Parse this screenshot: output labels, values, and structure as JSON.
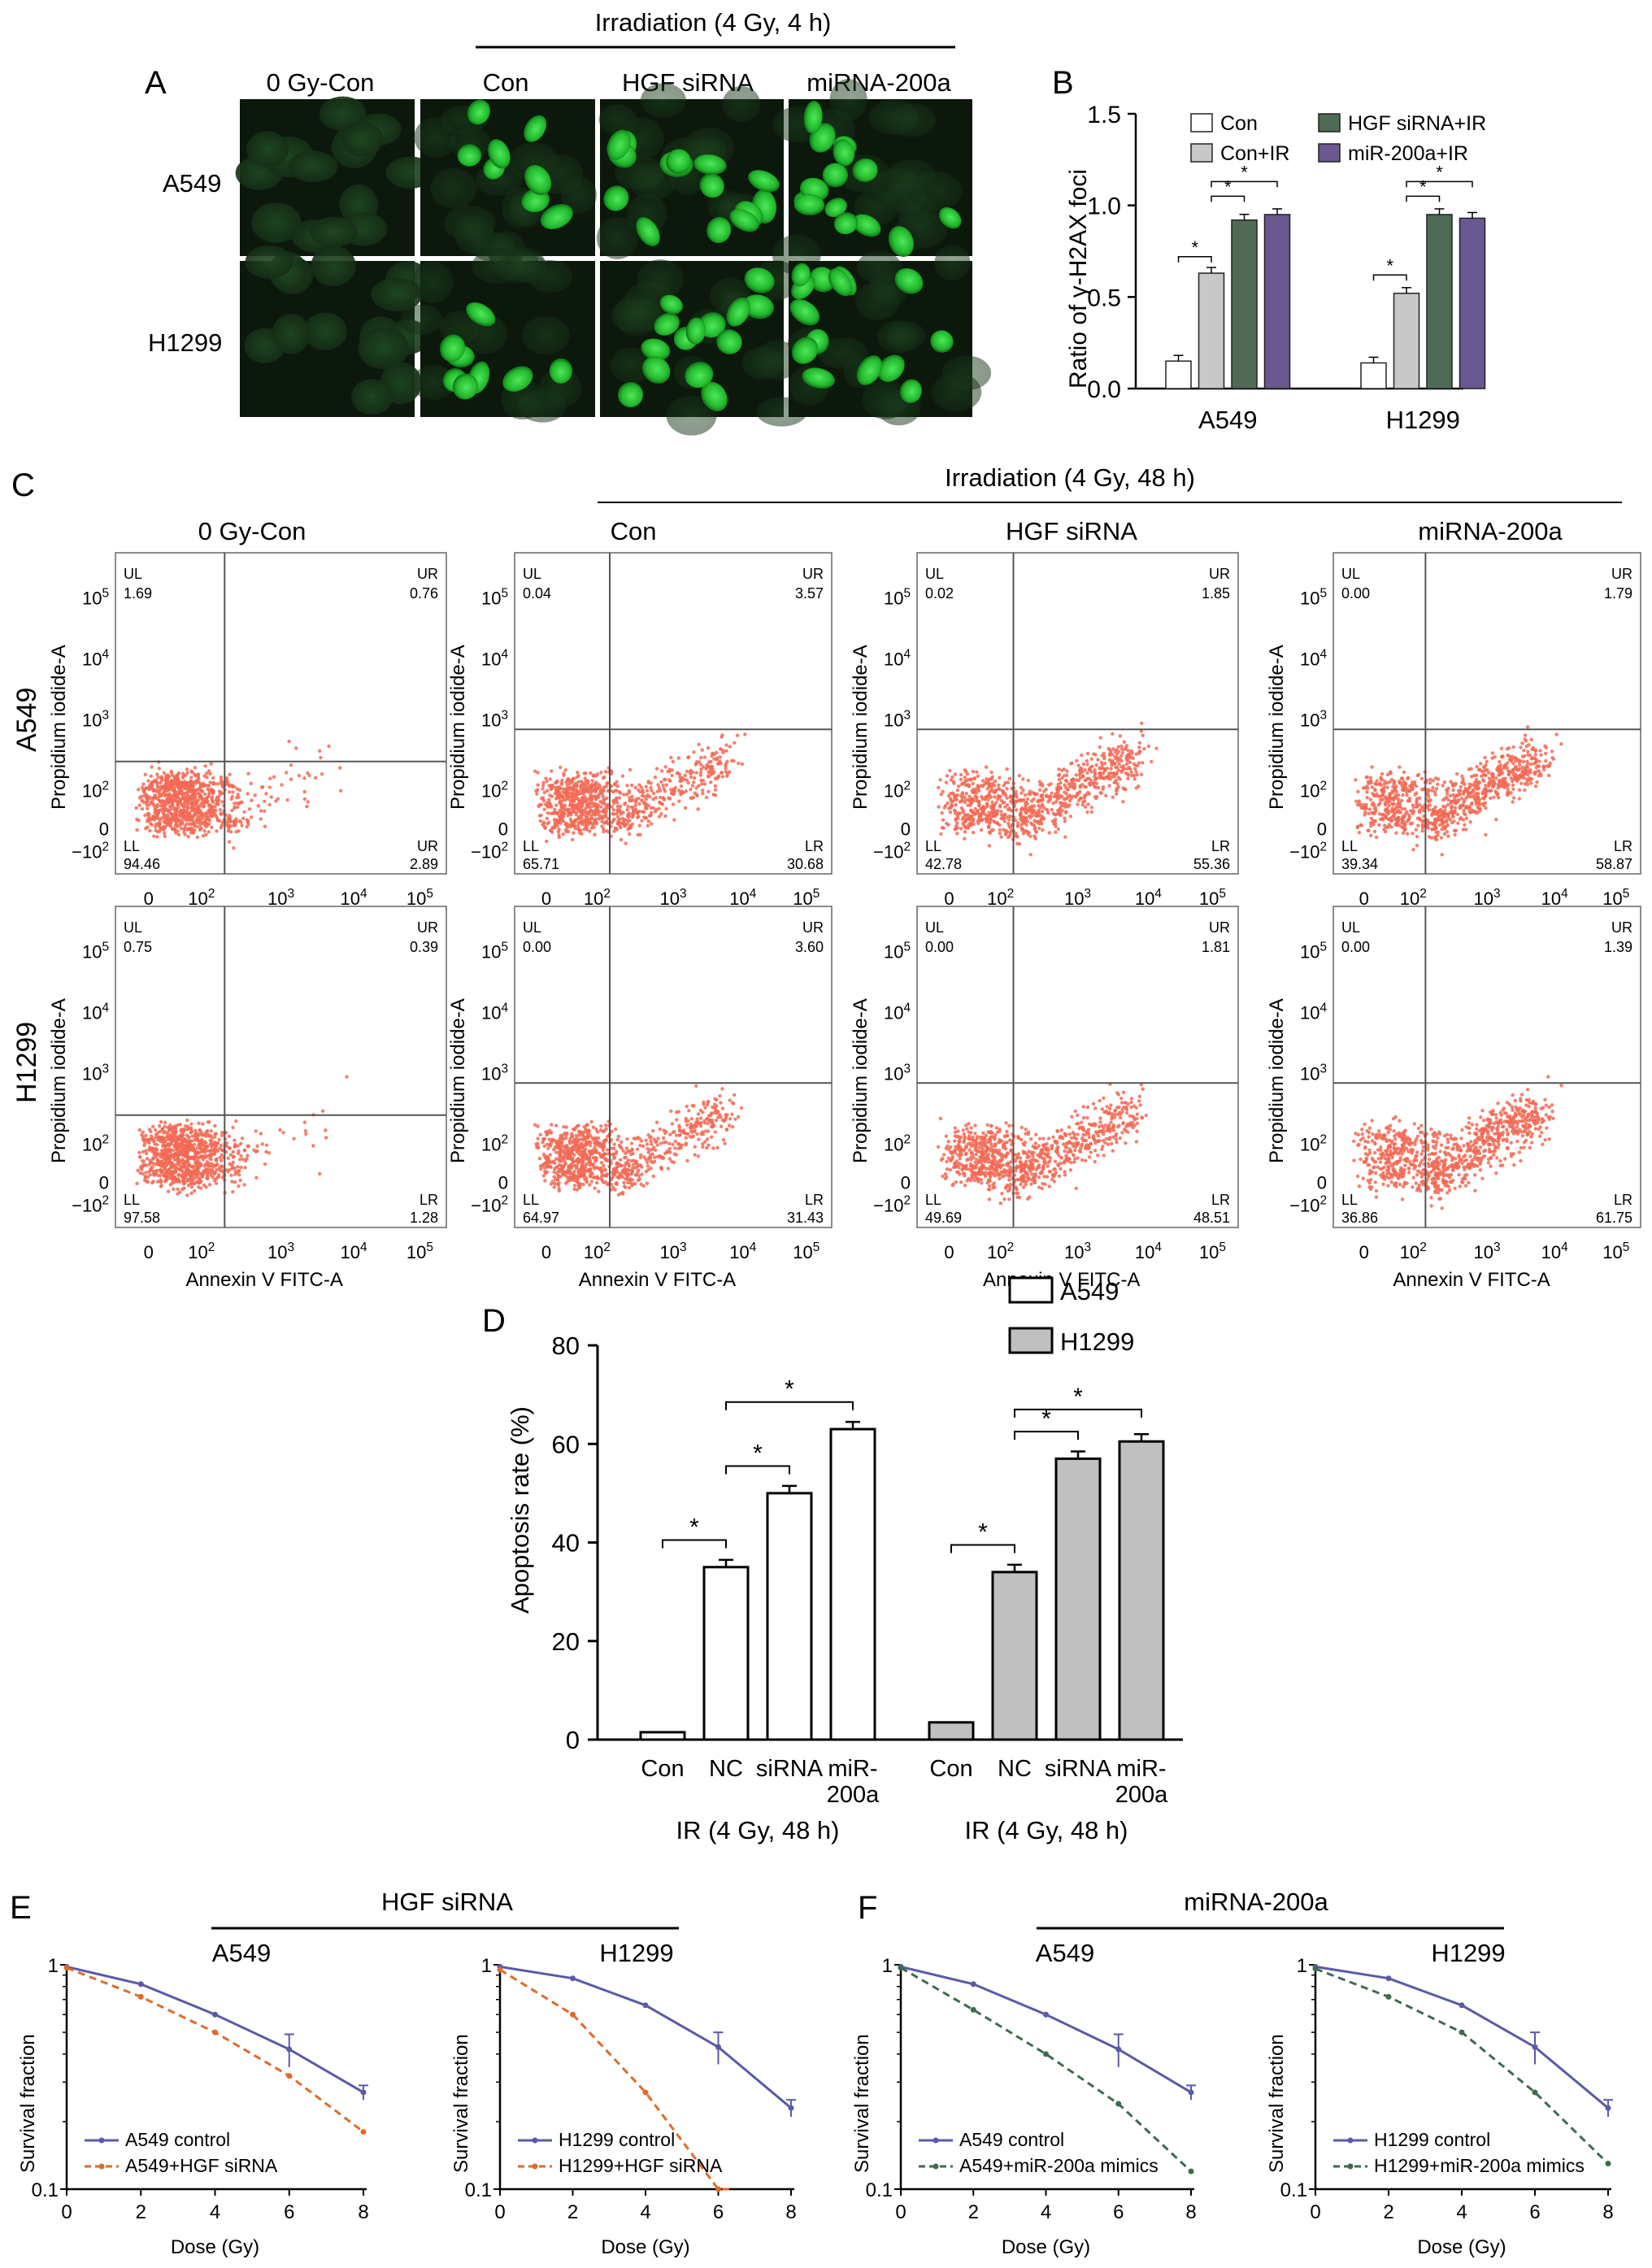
{
  "panelA": {
    "letter": "A",
    "group_header": "Irradiation (4 Gy, 4 h)",
    "columns": [
      "0 Gy-Con",
      "Con",
      "HGF siRNA",
      "miRNA-200a"
    ],
    "rows": [
      "A549",
      "H1299"
    ],
    "colors": {
      "background": "#0c180c",
      "nucleus": "#26c530"
    }
  },
  "panelB": {
    "letter": "B",
    "chart_data": {
      "type": "bar",
      "categories": [
        "A549",
        "H1299"
      ],
      "ylabel": "Ratio of γ-H2AX foci",
      "yticks": [
        "0.0",
        "0.5",
        "1.0",
        "1.5"
      ],
      "ylim": [
        0,
        1.5
      ],
      "legend_position": "top",
      "series": [
        {
          "name": "Con",
          "color": "#ffffff",
          "values": [
            0.15,
            0.14
          ]
        },
        {
          "name": "Con+IR",
          "color": "#c8c8c8",
          "values": [
            0.63,
            0.52
          ]
        },
        {
          "name": "HGF siRNA+IR",
          "color": "#4f6b55",
          "values": [
            0.92,
            0.95
          ]
        },
        {
          "name": "miR-200a+IR",
          "color": "#6a5890",
          "values": [
            0.95,
            0.93
          ]
        }
      ],
      "significance": "*"
    }
  },
  "panelC": {
    "letter": "C",
    "group_header": "Irradiation (4 Gy, 48 h)",
    "columns": [
      "0 Gy-Con",
      "Con",
      "HGF siRNA",
      "miRNA-200a"
    ],
    "rows": [
      "A549",
      "H1299"
    ],
    "xlabel": "Annexin V FITC-A",
    "ylabel": "Propidium iodide-A",
    "xticks": [
      "0",
      "10^2",
      "10^3",
      "10^4",
      "10^5"
    ],
    "yticks": [
      "-10^2",
      "0",
      "10^2",
      "10^3",
      "10^4",
      "10^5"
    ],
    "dot_color": "#f26a55",
    "plots": [
      {
        "row": "A549",
        "column": "0 Gy-Con",
        "UL": "1.69",
        "UR": "0.76",
        "LL": "94.46",
        "LR": "2.89",
        "LR_tag": "UR"
      },
      {
        "row": "A549",
        "column": "Con",
        "UL": "0.04",
        "UR": "3.57",
        "LL": "65.71",
        "LR": "30.68",
        "LR_tag": "LR"
      },
      {
        "row": "A549",
        "column": "HGF siRNA",
        "UL": "0.02",
        "UR": "1.85",
        "LL": "42.78",
        "LR": "55.36",
        "LR_tag": "LR"
      },
      {
        "row": "A549",
        "column": "miRNA-200a",
        "UL": "0.00",
        "UR": "1.79",
        "LL": "39.34",
        "LR": "58.87",
        "LR_tag": "LR"
      },
      {
        "row": "H1299",
        "column": "0 Gy-Con",
        "UL": "0.75",
        "UR": "0.39",
        "LL": "97.58",
        "LR": "1.28",
        "LR_tag": "LR"
      },
      {
        "row": "H1299",
        "column": "Con",
        "UL": "0.00",
        "UR": "3.60",
        "LL": "64.97",
        "LR": "31.43",
        "LR_tag": "LR"
      },
      {
        "row": "H1299",
        "column": "HGF siRNA",
        "UL": "0.00",
        "UR": "1.81",
        "LL": "49.69",
        "LR": "48.51",
        "LR_tag": "LR"
      },
      {
        "row": "H1299",
        "column": "miRNA-200a",
        "UL": "0.00",
        "UR": "1.39",
        "LL": "36.86",
        "LR": "61.75",
        "LR_tag": "LR"
      }
    ]
  },
  "panelD": {
    "letter": "D",
    "chart_data": {
      "type": "bar",
      "ylabel": "Apoptosis rate (%)",
      "yticks": [
        "0",
        "20",
        "40",
        "60",
        "80"
      ],
      "ylim": [
        0,
        80
      ],
      "legend_position": "top-right",
      "groups": [
        {
          "name": "A549",
          "color": "#ffffff",
          "categories": [
            "Con",
            "NC",
            "siRNA",
            "miR-\n200a"
          ],
          "values": [
            1.5,
            35,
            50,
            63
          ],
          "xlabel": "IR (4 Gy, 48 h)"
        },
        {
          "name": "H1299",
          "color": "#c0c0c0",
          "categories": [
            "Con",
            "NC",
            "siRNA",
            "miR-\n200a"
          ],
          "values": [
            3.5,
            34,
            57,
            60.5
          ],
          "xlabel": "IR (4 Gy, 48 h)"
        }
      ],
      "significance": "*"
    }
  },
  "panelE": {
    "letter": "E",
    "group_header": "HGF siRNA",
    "chart_data": [
      {
        "type": "line",
        "title": "A549",
        "xlabel": "Dose (Gy)",
        "ylabel": "Survival fraction",
        "scale_y": "log",
        "ylim": [
          0.1,
          1
        ],
        "xlim": [
          0,
          8
        ],
        "x": [
          0,
          2,
          4,
          6,
          8
        ],
        "series": [
          {
            "name": "A549 control",
            "color": "#5a5aa8",
            "dash": "solid",
            "values": [
              0.98,
              0.82,
              0.6,
              0.42,
              0.27
            ]
          },
          {
            "name": "A549+HGF siRNA",
            "color": "#e06a2a",
            "dash": "dashed",
            "values": [
              0.97,
              0.72,
              0.5,
              0.32,
              0.18
            ]
          }
        ]
      },
      {
        "type": "line",
        "title": "H1299",
        "xlabel": "Dose (Gy)",
        "ylabel": "Survival fraction",
        "scale_y": "log",
        "ylim": [
          0.1,
          1
        ],
        "xlim": [
          0,
          8
        ],
        "x": [
          0,
          2,
          4,
          6,
          8
        ],
        "series": [
          {
            "name": "H1299 control",
            "color": "#5a5aa8",
            "dash": "solid",
            "values": [
              0.98,
              0.87,
              0.66,
              0.43,
              0.23
            ]
          },
          {
            "name": "H1299+HGF siRNA",
            "color": "#e06a2a",
            "dash": "dashed",
            "values": [
              0.95,
              0.6,
              0.27,
              0.1,
              null
            ]
          }
        ]
      }
    ]
  },
  "panelF": {
    "letter": "F",
    "group_header": "miRNA-200a",
    "chart_data": [
      {
        "type": "line",
        "title": "A549",
        "xlabel": "Dose (Gy)",
        "ylabel": "Survival fraction",
        "scale_y": "log",
        "ylim": [
          0.1,
          1
        ],
        "xlim": [
          0,
          8
        ],
        "x": [
          0,
          2,
          4,
          6,
          8
        ],
        "series": [
          {
            "name": "A549 control",
            "color": "#5a5aa8",
            "dash": "solid",
            "values": [
              0.98,
              0.82,
              0.6,
              0.42,
              0.27
            ]
          },
          {
            "name": "A549+miR-200a mimics",
            "color": "#3d6b4f",
            "dash": "dashed",
            "values": [
              0.97,
              0.63,
              0.4,
              0.24,
              0.12
            ]
          }
        ]
      },
      {
        "type": "line",
        "title": "H1299",
        "xlabel": "Dose (Gy)",
        "ylabel": "Survival fraction",
        "scale_y": "log",
        "ylim": [
          0.1,
          1
        ],
        "xlim": [
          0,
          8
        ],
        "x": [
          0,
          2,
          4,
          6,
          8
        ],
        "series": [
          {
            "name": "H1299 control",
            "color": "#5a5aa8",
            "dash": "solid",
            "values": [
              0.98,
              0.87,
              0.66,
              0.43,
              0.23
            ]
          },
          {
            "name": "H1299+miR-200a mimics",
            "color": "#3d6b4f",
            "dash": "dashed",
            "values": [
              0.96,
              0.72,
              0.5,
              0.27,
              0.13
            ]
          }
        ]
      }
    ]
  }
}
